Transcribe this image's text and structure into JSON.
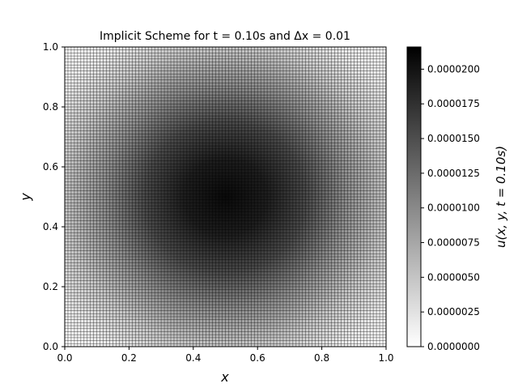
{
  "chart_data": {
    "type": "heatmap",
    "title": "Implicit Scheme for t = 0.10s and Δx = 0.01",
    "xlabel": "x",
    "ylabel": "y",
    "xlim": [
      0.0,
      1.0
    ],
    "ylim": [
      0.0,
      1.0
    ],
    "x_ticks": [
      "0.0",
      "0.2",
      "0.4",
      "0.6",
      "0.8",
      "1.0"
    ],
    "y_ticks": [
      "0.0",
      "0.2",
      "0.4",
      "0.6",
      "0.8",
      "1.0"
    ],
    "grid_spacing": 0.01,
    "field": "u(x,y) = A * sin(pi*x) * sin(pi*y)",
    "amplitude": 2.16e-05,
    "colormap": "gray_r",
    "colors": {
      "low": "#ffffff",
      "high": "#000000",
      "mesh": "#000000"
    },
    "colorbar": {
      "label": "u(x, y, t = 0.10s)",
      "range": [
        0.0,
        2.16e-05
      ],
      "ticks": [
        "0.0000000",
        "0.0000025",
        "0.0000050",
        "0.0000075",
        "0.0000100",
        "0.0000125",
        "0.0000150",
        "0.0000175",
        "0.0000200"
      ],
      "tick_values": [
        0.0,
        2.5e-06,
        5e-06,
        7.5e-06,
        1e-05,
        1.25e-05,
        1.5e-05,
        1.75e-05,
        2e-05
      ]
    }
  }
}
